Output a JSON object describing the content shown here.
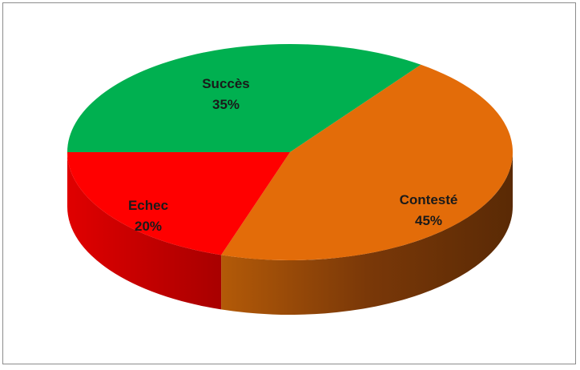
{
  "chart_data": {
    "type": "pie",
    "style": "3d",
    "slices": [
      {
        "label": "Succès",
        "value": 35,
        "value_label": "35%",
        "color": "#00b050",
        "side_color": "#007a37"
      },
      {
        "label": "Contesté",
        "value": 45,
        "value_label": "45%",
        "color": "#e36c09",
        "side_color": "#7a3708"
      },
      {
        "label": "Echec",
        "value": 20,
        "value_label": "20%",
        "color": "#ff0000",
        "side_color": "#b30000"
      }
    ]
  }
}
